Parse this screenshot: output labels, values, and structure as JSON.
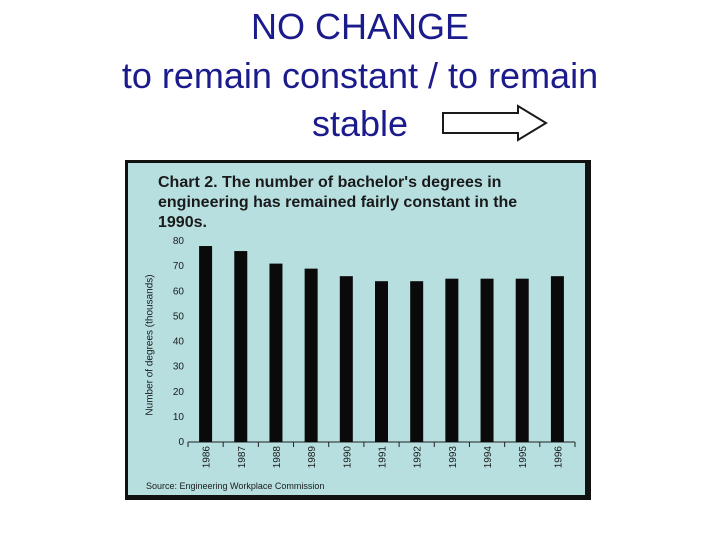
{
  "slide": {
    "title_lines": [
      "NO CHANGE",
      "to remain constant / to remain",
      "stable"
    ],
    "arrow_icon": "right-arrow-icon",
    "title_color": "#1b1b8c"
  },
  "chart_data": {
    "type": "bar",
    "title": "Chart 2. The number of bachelor's degrees in engineering has remained fairly constant in the 1990s.",
    "xlabel": "",
    "ylabel": "Number of degrees (thousands)",
    "categories": [
      "1986",
      "1987",
      "1988",
      "1989",
      "1990",
      "1991",
      "1992",
      "1993",
      "1994",
      "1995",
      "1996"
    ],
    "values": [
      78,
      76,
      71,
      69,
      66,
      64,
      64,
      65,
      65,
      65,
      66
    ],
    "ylim": [
      0,
      80
    ],
    "yticks": [
      "0",
      "10",
      "20",
      "30",
      "40",
      "50",
      "60",
      "70",
      "80"
    ],
    "grid": false,
    "legend": "none",
    "source": "Source: Engineering Workplace Commission",
    "bar_color": "#0a0a0a",
    "background_color": "#b7dfe0"
  }
}
